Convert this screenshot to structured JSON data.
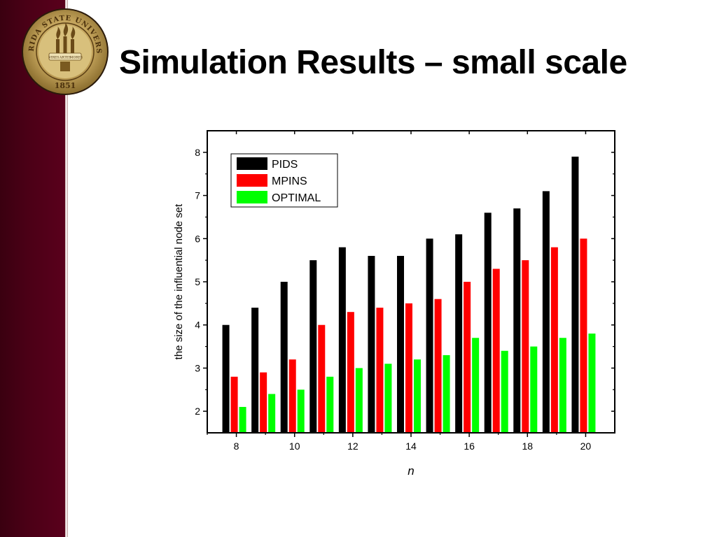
{
  "slide": {
    "title": "Simulation Results – small scale",
    "accent_color": "#4a0016"
  },
  "seal": {
    "ring_text": "FLORIDA STATE UNIVERSITY",
    "year": "1851",
    "banner_words": [
      "VIRES",
      "ARTES",
      "MORES"
    ],
    "gold_color": "#b89a4e"
  },
  "chart_data": {
    "type": "bar",
    "categories": [
      "8",
      "9",
      "10",
      "11",
      "12",
      "13",
      "14",
      "15",
      "16",
      "17",
      "18",
      "19",
      "20"
    ],
    "series": [
      {
        "name": "PIDS",
        "color": "#000000",
        "values": [
          4.0,
          4.4,
          5.0,
          5.5,
          5.8,
          5.6,
          5.6,
          6.0,
          6.1,
          6.6,
          6.7,
          7.1,
          7.9
        ]
      },
      {
        "name": "MPINS",
        "color": "#ff0000",
        "values": [
          2.8,
          2.9,
          3.2,
          4.0,
          4.3,
          4.4,
          4.5,
          4.6,
          5.0,
          5.3,
          5.5,
          5.8,
          6.0
        ]
      },
      {
        "name": "OPTIMAL",
        "color": "#00ff00",
        "values": [
          2.1,
          2.4,
          2.5,
          2.8,
          3.0,
          3.1,
          3.2,
          3.3,
          3.7,
          3.4,
          3.5,
          3.7,
          3.8
        ]
      }
    ],
    "xlabel": "n",
    "ylabel": "the size of the influential node set",
    "xticks": [
      "8",
      "10",
      "12",
      "14",
      "16",
      "18",
      "20"
    ],
    "yticks": [
      "2",
      "3",
      "4",
      "5",
      "6",
      "7",
      "8"
    ],
    "ylim": [
      1.5,
      8.5
    ],
    "xlim": [
      7,
      21
    ],
    "legend_position": "top-left",
    "grid": false
  }
}
